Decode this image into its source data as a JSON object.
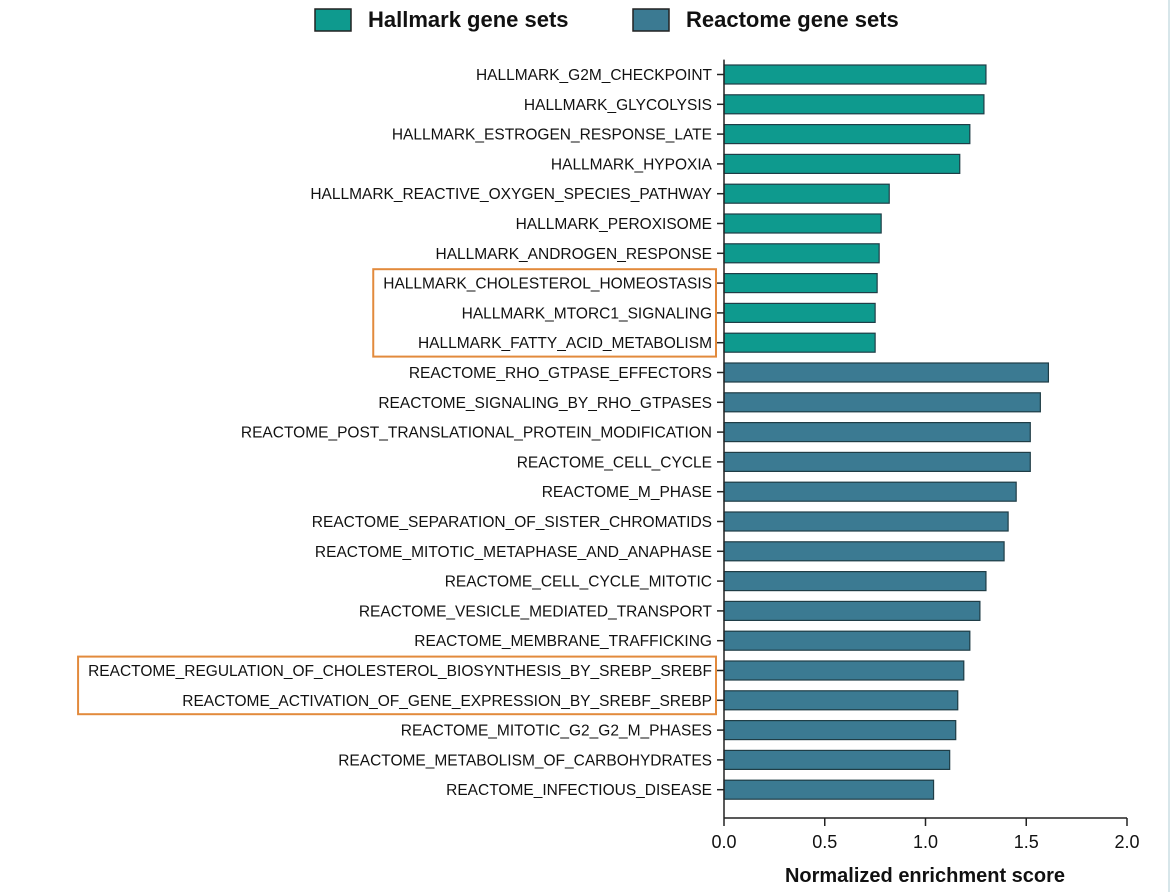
{
  "chart_data": {
    "type": "bar",
    "orientation": "horizontal",
    "xlabel": "Normalized enrichment score",
    "ylabel": "",
    "xlim": [
      0,
      2.0
    ],
    "xticks": [
      "0.0",
      "0.5",
      "1.0",
      "1.5",
      "2.0"
    ],
    "grid": false,
    "legend_position": "top",
    "legend": [
      {
        "name": "Hallmark gene sets",
        "color": "#0e9a8e"
      },
      {
        "name": "Reactome gene sets",
        "color": "#3b7a92"
      }
    ],
    "highlight_color": "#e28a3c",
    "bars": [
      {
        "label": "HALLMARK_G2M_CHECKPOINT",
        "value": 1.3,
        "group": 0
      },
      {
        "label": "HALLMARK_GLYCOLYSIS",
        "value": 1.29,
        "group": 0
      },
      {
        "label": "HALLMARK_ESTROGEN_RESPONSE_LATE",
        "value": 1.22,
        "group": 0
      },
      {
        "label": "HALLMARK_HYPOXIA",
        "value": 1.17,
        "group": 0
      },
      {
        "label": "HALLMARK_REACTIVE_OXYGEN_SPECIES_PATHWAY",
        "value": 0.82,
        "group": 0
      },
      {
        "label": "HALLMARK_PEROXISOME",
        "value": 0.78,
        "group": 0
      },
      {
        "label": "HALLMARK_ANDROGEN_RESPONSE",
        "value": 0.77,
        "group": 0
      },
      {
        "label": "HALLMARK_CHOLESTEROL_HOMEOSTASIS",
        "value": 0.76,
        "group": 0
      },
      {
        "label": "HALLMARK_MTORC1_SIGNALING",
        "value": 0.75,
        "group": 0
      },
      {
        "label": "HALLMARK_FATTY_ACID_METABOLISM",
        "value": 0.75,
        "group": 0
      },
      {
        "label": "REACTOME_RHO_GTPASE_EFFECTORS",
        "value": 1.61,
        "group": 1
      },
      {
        "label": "REACTOME_SIGNALING_BY_RHO_GTPASES",
        "value": 1.57,
        "group": 1
      },
      {
        "label": "REACTOME_POST_TRANSLATIONAL_PROTEIN_MODIFICATION",
        "value": 1.52,
        "group": 1
      },
      {
        "label": "REACTOME_CELL_CYCLE",
        "value": 1.52,
        "group": 1
      },
      {
        "label": "REACTOME_M_PHASE",
        "value": 1.45,
        "group": 1
      },
      {
        "label": "REACTOME_SEPARATION_OF_SISTER_CHROMATIDS",
        "value": 1.41,
        "group": 1
      },
      {
        "label": "REACTOME_MITOTIC_METAPHASE_AND_ANAPHASE",
        "value": 1.39,
        "group": 1
      },
      {
        "label": "REACTOME_CELL_CYCLE_MITOTIC",
        "value": 1.3,
        "group": 1
      },
      {
        "label": "REACTOME_VESICLE_MEDIATED_TRANSPORT",
        "value": 1.27,
        "group": 1
      },
      {
        "label": "REACTOME_MEMBRANE_TRAFFICKING",
        "value": 1.22,
        "group": 1
      },
      {
        "label": "REACTOME_REGULATION_OF_CHOLESTEROL_BIOSYNTHESIS_BY_SREBP_SREBF",
        "value": 1.19,
        "group": 1
      },
      {
        "label": "REACTOME_ACTIVATION_OF_GENE_EXPRESSION_BY_SREBF_SREBP",
        "value": 1.16,
        "group": 1
      },
      {
        "label": "REACTOME_MITOTIC_G2_G2_M_PHASES",
        "value": 1.15,
        "group": 1
      },
      {
        "label": "REACTOME_METABOLISM_OF_CARBOHYDRATES",
        "value": 1.12,
        "group": 1
      },
      {
        "label": "REACTOME_INFECTIOUS_DISEASE",
        "value": 1.04,
        "group": 1
      }
    ],
    "highlights": [
      {
        "from": "HALLMARK_CHOLESTEROL_HOMEOSTASIS",
        "to": "HALLMARK_FATTY_ACID_METABOLISM"
      },
      {
        "from": "REACTOME_REGULATION_OF_CHOLESTEROL_BIOSYNTHESIS_BY_SREBP_SREBF",
        "to": "REACTOME_ACTIVATION_OF_GENE_EXPRESSION_BY_SREBF_SREBP"
      }
    ]
  }
}
